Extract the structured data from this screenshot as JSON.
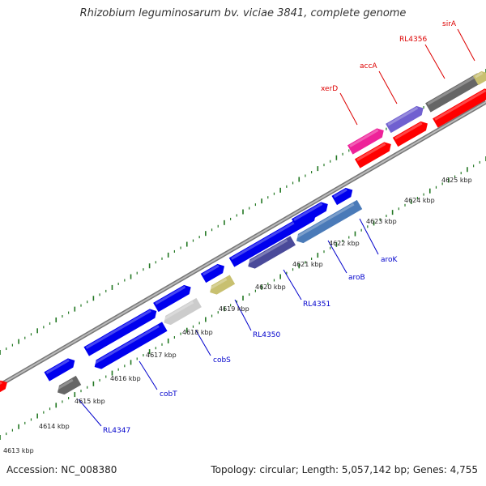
{
  "title": "Rhizobium leguminosarum bv. viciae 3841, complete genome",
  "footer": {
    "accession": "Accession: NC_008380",
    "summary": "Topology: circular; Length: 5,057,142 bp; Genes: 4,755"
  },
  "tick_labels": [
    "4613 kbp",
    "4614 kbp",
    "4615 kbp",
    "4616 kbp",
    "4617 kbp",
    "4618 kbp",
    "4619 kbp",
    "4620 kbp",
    "4621 kbp",
    "4622 kbp",
    "4623 kbp",
    "4624 kbp",
    "4625 kbp"
  ],
  "gene_labels": [
    {
      "text": "RL4347",
      "color": "#0000cc"
    },
    {
      "text": "cobT",
      "color": "#0000cc"
    },
    {
      "text": "cobS",
      "color": "#0000cc"
    },
    {
      "text": "RL4350",
      "color": "#0000cc"
    },
    {
      "text": "RL4351",
      "color": "#0000cc"
    },
    {
      "text": "aroB",
      "color": "#0000cc"
    },
    {
      "text": "aroK",
      "color": "#0000cc"
    },
    {
      "text": "xerD",
      "color": "#dd0000"
    },
    {
      "text": "accA",
      "color": "#dd0000"
    },
    {
      "text": "RL4356",
      "color": "#dd0000"
    },
    {
      "text": "sirA",
      "color": "#dd0000"
    }
  ],
  "colors": {
    "blue_gene": "#0000ee",
    "red_gene": "#ff0000",
    "gray_gene": "#666666",
    "tick": "#227722",
    "backbone": "#888888"
  }
}
